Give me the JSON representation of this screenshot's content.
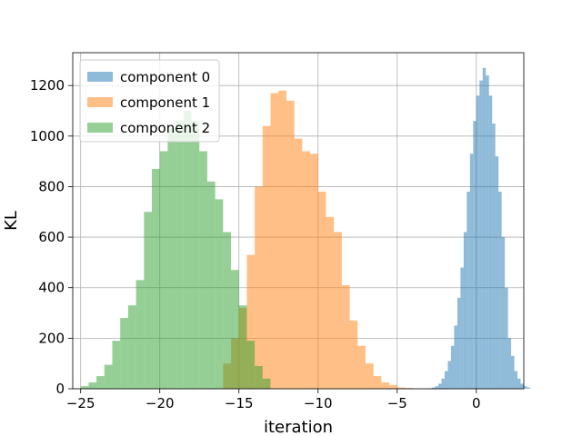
{
  "chart_data": {
    "type": "bar",
    "subtype": "histogram",
    "title": "",
    "xlabel": "iteration",
    "ylabel": "KL",
    "xlim": [
      -25.5,
      3.0
    ],
    "ylim": [
      0,
      1330
    ],
    "xticks": [
      -25,
      -20,
      -15,
      -10,
      -5,
      0
    ],
    "xtick_labels": [
      "−25",
      "−20",
      "−15",
      "−10",
      "−5",
      "0"
    ],
    "yticks": [
      0,
      200,
      400,
      600,
      800,
      1000,
      1200
    ],
    "ytick_labels": [
      "0",
      "200",
      "400",
      "600",
      "800",
      "1000",
      "1200"
    ],
    "grid": true,
    "legend_position": "top-left",
    "alpha": 0.5,
    "series": [
      {
        "name": "component 0",
        "color": "#1f77b4",
        "bin_start": -3.0,
        "bin_width": 0.2,
        "values": [
          2,
          5,
          10,
          20,
          40,
          70,
          110,
          170,
          250,
          360,
          480,
          620,
          780,
          930,
          1060,
          1160,
          1220,
          1270,
          1240,
          1160,
          1050,
          920,
          780,
          600,
          400,
          200,
          130,
          70,
          40,
          20,
          10,
          5
        ]
      },
      {
        "name": "component 1",
        "color": "#ff7f0e",
        "bin_start": -16.0,
        "bin_width": 0.5,
        "values": [
          100,
          200,
          320,
          530,
          800,
          1040,
          1170,
          1180,
          1140,
          990,
          940,
          930,
          780,
          680,
          620,
          410,
          270,
          170,
          100,
          50,
          25,
          15,
          5,
          3
        ]
      },
      {
        "name": "component 2",
        "color": "#2ca02c",
        "bin_start": -25.0,
        "bin_width": 0.5,
        "values": [
          10,
          25,
          50,
          95,
          190,
          280,
          330,
          430,
          700,
          870,
          940,
          1030,
          1060,
          1100,
          1060,
          940,
          820,
          750,
          620,
          470,
          330,
          190,
          90,
          40
        ]
      }
    ]
  }
}
